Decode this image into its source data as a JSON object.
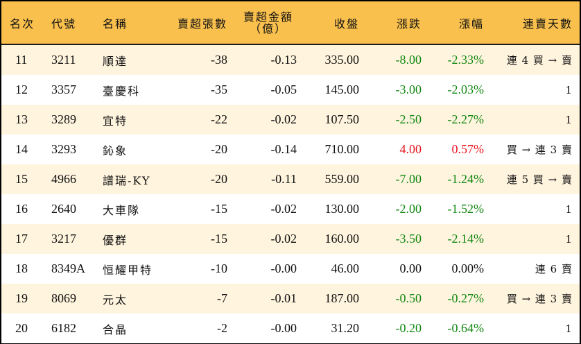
{
  "table": {
    "headers": {
      "rank": "名次",
      "code": "代號",
      "name": "名稱",
      "net_sell_lots": "賣超張數",
      "net_sell_amount_line1": "賣超金額",
      "net_sell_amount_line2": "（億）",
      "close": "收盤",
      "change": "漲跌",
      "change_pct": "漲幅",
      "consecutive_days": "連賣天數"
    },
    "colors": {
      "header_bg": "#F9C04D",
      "row_alt_bg": "#FFF4DE",
      "up": "#E8141E",
      "down": "#118811"
    },
    "rows": [
      {
        "rank": "11",
        "code": "3211",
        "name": "順達",
        "lots": "-38",
        "amount": "-0.13",
        "close": "335.00",
        "change": "-8.00",
        "pct": "-2.33%",
        "streak": "連 4 買 → 賣",
        "dir": "neg"
      },
      {
        "rank": "12",
        "code": "3357",
        "name": "臺慶科",
        "lots": "-35",
        "amount": "-0.05",
        "close": "145.00",
        "change": "-3.00",
        "pct": "-2.03%",
        "streak": "1",
        "dir": "neg"
      },
      {
        "rank": "13",
        "code": "3289",
        "name": "宜特",
        "lots": "-22",
        "amount": "-0.02",
        "close": "107.50",
        "change": "-2.50",
        "pct": "-2.27%",
        "streak": "1",
        "dir": "neg"
      },
      {
        "rank": "14",
        "code": "3293",
        "name": "鈊象",
        "lots": "-20",
        "amount": "-0.14",
        "close": "710.00",
        "change": "4.00",
        "pct": "0.57%",
        "streak": "買 → 連 3 賣",
        "dir": "pos"
      },
      {
        "rank": "15",
        "code": "4966",
        "name": "譜瑞-KY",
        "lots": "-20",
        "amount": "-0.11",
        "close": "559.00",
        "change": "-7.00",
        "pct": "-1.24%",
        "streak": "連 5 買 → 賣",
        "dir": "neg"
      },
      {
        "rank": "16",
        "code": "2640",
        "name": "大車隊",
        "lots": "-15",
        "amount": "-0.02",
        "close": "130.00",
        "change": "-2.00",
        "pct": "-1.52%",
        "streak": "1",
        "dir": "neg"
      },
      {
        "rank": "17",
        "code": "3217",
        "name": "優群",
        "lots": "-15",
        "amount": "-0.02",
        "close": "160.00",
        "change": "-3.50",
        "pct": "-2.14%",
        "streak": "1",
        "dir": "neg"
      },
      {
        "rank": "18",
        "code": "8349A",
        "name": "恒耀甲特",
        "lots": "-10",
        "amount": "-0.00",
        "close": "46.00",
        "change": "0.00",
        "pct": "0.00%",
        "streak": "連 6 賣",
        "dir": "flat"
      },
      {
        "rank": "19",
        "code": "8069",
        "name": "元太",
        "lots": "-7",
        "amount": "-0.01",
        "close": "187.00",
        "change": "-0.50",
        "pct": "-0.27%",
        "streak": "買 → 連 3 賣",
        "dir": "neg"
      },
      {
        "rank": "20",
        "code": "6182",
        "name": "合晶",
        "lots": "-2",
        "amount": "-0.00",
        "close": "31.20",
        "change": "-0.20",
        "pct": "-0.64%",
        "streak": "1",
        "dir": "neg"
      }
    ]
  }
}
